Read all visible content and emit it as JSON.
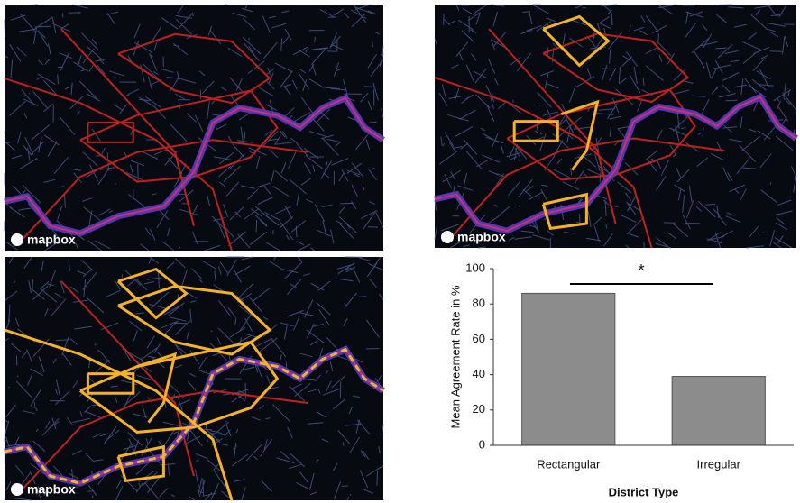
{
  "maps": [
    {
      "logo": "mapbox"
    },
    {
      "logo": "mapbox"
    },
    {
      "logo": "mapbox"
    }
  ],
  "chart_data": {
    "type": "bar",
    "categories": [
      "Rectangular",
      "Irregular"
    ],
    "values": [
      86,
      39
    ],
    "color": "#8c8c8c",
    "ylim": [
      0,
      100
    ],
    "yticks": [
      0,
      20,
      40,
      60,
      80,
      100
    ],
    "y_label": "Mean Agreement Rate in %",
    "x_label": "District Type",
    "annotation": "*"
  }
}
